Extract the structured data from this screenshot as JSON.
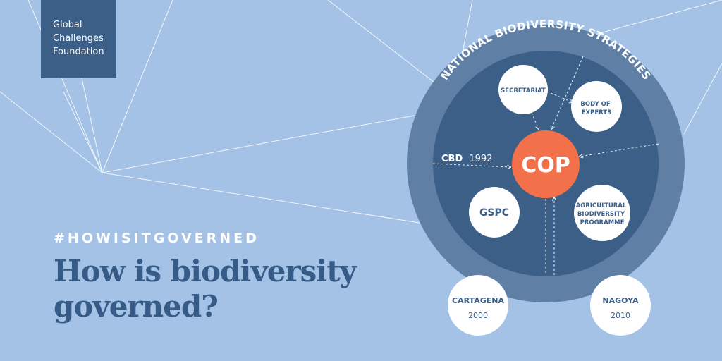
{
  "logo": {
    "lines": [
      "Global",
      "Challenges",
      "Foundation"
    ]
  },
  "hashtag": "#HOWISITGOVERNED",
  "headline": {
    "line1": "How is biodiversity",
    "line2": "governed?"
  },
  "diagram": {
    "ring_label": "NATIONAL BIODIVERSITY STRATEGIES",
    "center": "COP",
    "cbd": {
      "bold": "CBD",
      "year": "1992"
    },
    "nodes": {
      "secretariat": "SECRETARIAT",
      "body_of_experts": [
        "BODY OF",
        "EXPERTS"
      ],
      "gspc": "GSPC",
      "agricultural": [
        "AGRICULTURAL",
        "BIODIVERSITY",
        "PROGRAMME"
      ],
      "cartagena": {
        "name": "CARTAGENA",
        "year": "2000"
      },
      "nagoya": {
        "name": "NAGOYA",
        "year": "2010"
      }
    },
    "colors": {
      "background": "#a4c2e6",
      "outer_ring": "#5f7fa5",
      "inner_circle": "#3b5f87",
      "cop": "#f2714b",
      "node": "#ffffff",
      "text_dark": "#3b5f87"
    }
  }
}
